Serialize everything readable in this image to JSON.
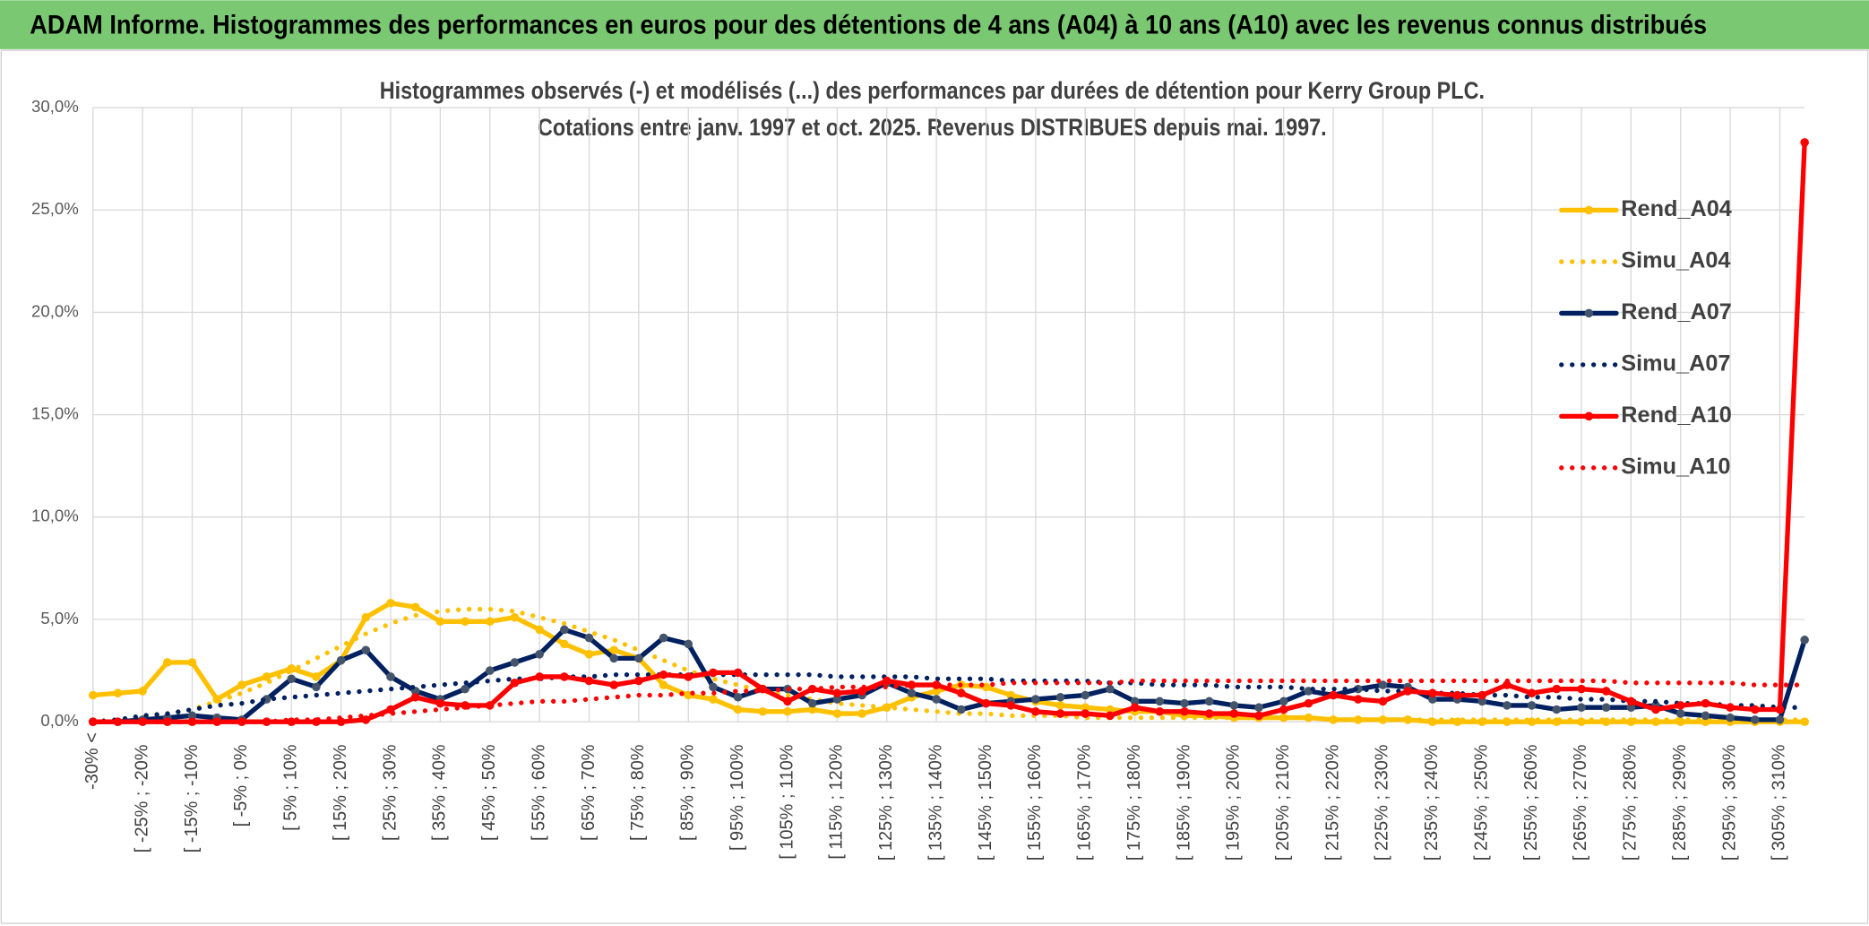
{
  "header": {
    "title": "ADAM Informe. Histogrammes des performances en euros pour des détentions de 4 ans (A04) à 10 ans (A10) avec les revenus connus distribués"
  },
  "chart_data": {
    "type": "line",
    "title": "Histogrammes observés (-) et modélisés (...) des performances par durées de détention pour Kerry Group PLC.",
    "subtitle": "Cotations entre janv. 1997 et oct. 2025. Revenus DISTRIBUES depuis mai. 1997.",
    "categories": [
      "-30% <",
      null,
      "[ -25% ; -20%",
      null,
      "[ -15% ; -10%",
      null,
      "[ -5% ; 0%",
      null,
      "[ 5% ; 10%",
      null,
      "[ 15% ; 20%",
      null,
      "[ 25% ; 30%",
      null,
      "[ 35% ; 40%",
      null,
      "[ 45% ; 50%",
      null,
      "[ 55% ; 60%",
      null,
      "[ 65% ; 70%",
      null,
      "[ 75% ; 80%",
      null,
      "[ 85% ; 90%",
      null,
      "[ 95% ; 100%",
      null,
      "[ 105% ; 110%",
      null,
      "[ 115% ; 120%",
      null,
      "[ 125% ; 130%",
      null,
      "[ 135% ; 140%",
      null,
      "[ 145% ; 150%",
      null,
      "[ 155% ; 160%",
      null,
      "[ 165% ; 170%",
      null,
      "[ 175% ; 180%",
      null,
      "[ 185% ; 190%",
      null,
      "[ 195% ; 200%",
      null,
      "[ 205% ; 210%",
      null,
      "[ 215% ; 220%",
      null,
      "[ 225% ; 230%",
      null,
      "[ 235% ; 240%",
      null,
      "[ 245% ; 250%",
      null,
      "[ 255% ; 260%",
      null,
      "[ 265% ; 270%",
      null,
      "[ 275% ; 280%",
      null,
      "[ 285% ; 290%",
      null,
      "[ 295% ; 300%",
      null,
      "[ 305% ; 310%",
      null
    ],
    "ylim": [
      0,
      30
    ],
    "yticks": [
      {
        "value": 0,
        "label": "0,0%"
      },
      {
        "value": 5,
        "label": "5,0%"
      },
      {
        "value": 10,
        "label": "10,0%"
      },
      {
        "value": 15,
        "label": "15,0%"
      },
      {
        "value": 20,
        "label": "20,0%"
      },
      {
        "value": 25,
        "label": "25,0%"
      },
      {
        "value": 30,
        "label": "30,0%"
      }
    ],
    "grid": true,
    "legend": "right",
    "series": [
      {
        "name": "Rend_A04",
        "color": "#FFC000",
        "style": "solid",
        "markers": true,
        "values": [
          1.3,
          1.4,
          1.5,
          2.9,
          2.9,
          1.1,
          1.8,
          2.2,
          2.6,
          2.2,
          3.0,
          5.1,
          5.8,
          5.6,
          4.9,
          4.9,
          4.9,
          5.1,
          4.5,
          3.8,
          3.3,
          3.5,
          3.1,
          1.8,
          1.3,
          1.1,
          0.6,
          0.5,
          0.5,
          0.6,
          0.4,
          0.4,
          0.7,
          1.2,
          1.5,
          1.8,
          1.7,
          1.3,
          1.0,
          0.8,
          0.7,
          0.6,
          0.5,
          0.5,
          0.3,
          0.3,
          0.2,
          0.2,
          0.2,
          0.2,
          0.1,
          0.1,
          0.1,
          0.1,
          0,
          0,
          0,
          0,
          0,
          0,
          0,
          0,
          0,
          0,
          0,
          0,
          0,
          0,
          0,
          0
        ]
      },
      {
        "name": "Simu_A04",
        "color": "#FFC000",
        "style": "dotted",
        "markers": false,
        "values": [
          0,
          0.1,
          0.2,
          0.4,
          0.6,
          1.0,
          1.4,
          1.9,
          2.5,
          3.1,
          3.7,
          4.3,
          4.8,
          5.2,
          5.4,
          5.5,
          5.5,
          5.4,
          5.1,
          4.8,
          4.4,
          4.0,
          3.5,
          3.0,
          2.5,
          2.1,
          1.8,
          1.5,
          1.3,
          1.1,
          0.9,
          0.8,
          0.7,
          0.6,
          0.5,
          0.4,
          0.4,
          0.3,
          0.3,
          0.3,
          0.2,
          0.2,
          0.2,
          0.2,
          0.2,
          0.2,
          0.2,
          0.2,
          0.2,
          0.2,
          0.1,
          0.1,
          0.1,
          0.1,
          0.1,
          0.1,
          0.1,
          0.1,
          0.1,
          0.1,
          0.1,
          0.1,
          0.1,
          0.1,
          0.1,
          0.1,
          0.1,
          0.1,
          0.1,
          0.1
        ]
      },
      {
        "name": "Rend_A07",
        "color": "#002060",
        "marker_color": "#44546A",
        "style": "solid",
        "markers": true,
        "values": [
          0,
          0,
          0.1,
          0.2,
          0.3,
          0.2,
          0.1,
          1.1,
          2.1,
          1.7,
          3.0,
          3.5,
          2.2,
          1.5,
          1.1,
          1.6,
          2.5,
          2.9,
          3.3,
          4.5,
          4.1,
          3.1,
          3.1,
          4.1,
          3.8,
          1.7,
          1.2,
          1.6,
          1.6,
          0.9,
          1.1,
          1.3,
          1.9,
          1.4,
          1.1,
          0.6,
          0.9,
          1.0,
          1.1,
          1.2,
          1.3,
          1.6,
          1.0,
          1.0,
          0.9,
          1.0,
          0.8,
          0.7,
          1.0,
          1.5,
          1.3,
          1.6,
          1.8,
          1.7,
          1.1,
          1.1,
          1.0,
          0.8,
          0.8,
          0.6,
          0.7,
          0.7,
          0.7,
          0.8,
          0.4,
          0.3,
          0.2,
          0.1,
          0.1,
          4.0
        ]
      },
      {
        "name": "Simu_A07",
        "color": "#002060",
        "style": "dotted",
        "markers": false,
        "values": [
          0,
          0.1,
          0.3,
          0.4,
          0.6,
          0.8,
          0.9,
          1.1,
          1.2,
          1.3,
          1.4,
          1.5,
          1.6,
          1.7,
          1.8,
          1.9,
          2.0,
          2.1,
          2.1,
          2.2,
          2.2,
          2.3,
          2.3,
          2.3,
          2.3,
          2.3,
          2.3,
          2.3,
          2.3,
          2.3,
          2.2,
          2.2,
          2.2,
          2.2,
          2.1,
          2.1,
          2.1,
          2.0,
          2.0,
          2.0,
          2.0,
          1.9,
          1.9,
          1.8,
          1.8,
          1.8,
          1.7,
          1.7,
          1.7,
          1.6,
          1.6,
          1.6,
          1.5,
          1.5,
          1.4,
          1.4,
          1.3,
          1.3,
          1.2,
          1.2,
          1.1,
          1.1,
          1.0,
          1.0,
          0.9,
          0.9,
          0.8,
          0.8,
          0.7,
          0.7
        ]
      },
      {
        "name": "Rend_A10",
        "color": "#FF0000",
        "style": "solid",
        "markers": true,
        "values": [
          0,
          0,
          0,
          0,
          0,
          0,
          0,
          0,
          0,
          0,
          0,
          0.1,
          0.6,
          1.2,
          0.9,
          0.8,
          0.8,
          1.9,
          2.2,
          2.2,
          2.0,
          1.8,
          2.0,
          2.3,
          2.2,
          2.4,
          2.4,
          1.6,
          1.0,
          1.6,
          1.4,
          1.5,
          2.0,
          1.8,
          1.8,
          1.4,
          0.9,
          0.8,
          0.5,
          0.4,
          0.4,
          0.3,
          0.7,
          0.5,
          0.5,
          0.4,
          0.4,
          0.3,
          0.6,
          0.9,
          1.3,
          1.1,
          1.0,
          1.5,
          1.4,
          1.3,
          1.3,
          1.8,
          1.4,
          1.6,
          1.6,
          1.5,
          1.0,
          0.6,
          0.8,
          0.9,
          0.7,
          0.6,
          0.6,
          28.3
        ]
      },
      {
        "name": "Simu_A10",
        "color": "#FF0000",
        "style": "dotted",
        "markers": false,
        "values": [
          0,
          0,
          0,
          0,
          0,
          0,
          0,
          0,
          0.1,
          0.1,
          0.2,
          0.3,
          0.4,
          0.5,
          0.6,
          0.7,
          0.8,
          0.9,
          1.0,
          1.0,
          1.1,
          1.2,
          1.3,
          1.3,
          1.4,
          1.4,
          1.5,
          1.5,
          1.6,
          1.6,
          1.7,
          1.7,
          1.7,
          1.8,
          1.8,
          1.8,
          1.8,
          1.9,
          1.9,
          1.9,
          1.9,
          1.9,
          2.0,
          2.0,
          2.0,
          2.0,
          2.0,
          2.0,
          2.0,
          2.0,
          2.0,
          2.0,
          2.0,
          2.0,
          2.0,
          2.0,
          2.0,
          2.0,
          2.0,
          2.0,
          2.0,
          2.0,
          1.9,
          1.9,
          1.9,
          1.9,
          1.9,
          1.8,
          1.8,
          1.8
        ]
      }
    ]
  }
}
